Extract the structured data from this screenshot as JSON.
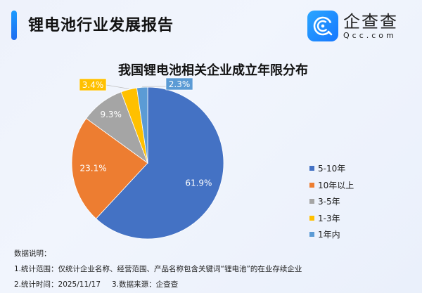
{
  "header": {
    "title": "锂电池行业发展报告",
    "logo": {
      "icon": "qcc-logo-icon",
      "name_cn": "企查查",
      "name_en": "Qcc.com"
    }
  },
  "chart_data": {
    "type": "pie",
    "title": "我国锂电池相关企业成立年限分布",
    "categories": [
      "5-10年",
      "10年以上",
      "3-5年",
      "1-3年",
      "1年内"
    ],
    "values": [
      61.9,
      23.1,
      9.3,
      3.4,
      2.3
    ],
    "unit": "%",
    "labels": [
      "61.9%",
      "23.1%",
      "9.3%",
      "3.4%",
      "2.3%"
    ],
    "colors": [
      "#4472c4",
      "#ed7d31",
      "#a5a5a5",
      "#ffc000",
      "#5b9bd5"
    ],
    "legend_position": "right",
    "start_angle": "12 o'clock, clockwise"
  },
  "legend": {
    "items": [
      {
        "label": "5-10年",
        "color": "#4472c4"
      },
      {
        "label": "10年以上",
        "color": "#ed7d31"
      },
      {
        "label": "3-5年",
        "color": "#a5a5a5"
      },
      {
        "label": "1-3年",
        "color": "#ffc000"
      },
      {
        "label": "1年内",
        "color": "#5b9bd5"
      }
    ]
  },
  "notes": {
    "heading": "数据说明：",
    "line1": "1.统计范围：仅统计企业名称、经营范围、产品名称包含关键词“锂电池”的在业存续企业",
    "line2a": "2.统计时间：2025/11/17",
    "line2b": "3.数据来源：企查查"
  }
}
